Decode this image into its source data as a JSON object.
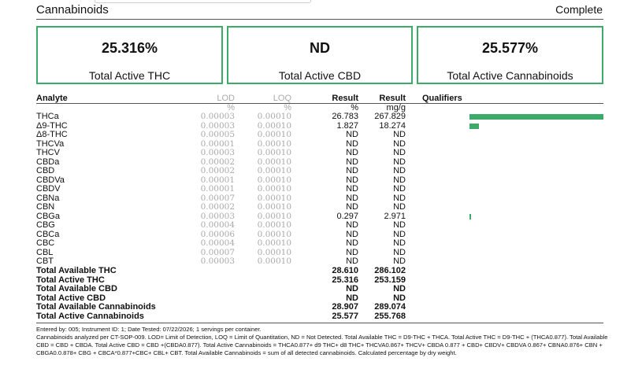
{
  "header": {
    "section_title": "Cannabinoids",
    "status": "Complete"
  },
  "summary": [
    {
      "value": "25.316%",
      "label": "Total Active THC"
    },
    {
      "value": "ND",
      "label": "Total Active CBD"
    },
    {
      "value": "25.577%",
      "label": "Total Active Cannabinoids"
    }
  ],
  "columns": {
    "analyte": "Analyte",
    "lod": "LOD",
    "lod_unit": "%",
    "loq": "LOQ",
    "loq_unit": "%",
    "result_pct": "Result",
    "result_pct_unit": "%",
    "result_mg": "Result",
    "result_mg_unit": "mg/g",
    "qualifiers": "Qualifiers"
  },
  "rows": [
    {
      "analyte": "THCa",
      "lod": "0.00003",
      "loq": "0.00010",
      "pct": "26.783",
      "mg": "267.829",
      "bar": 1.0
    },
    {
      "analyte": "Δ9-THC",
      "lod": "0.00003",
      "loq": "0.00010",
      "pct": "1.827",
      "mg": "18.274",
      "bar": 0.07
    },
    {
      "analyte": "Δ8-THC",
      "lod": "0.00005",
      "loq": "0.00010",
      "pct": "ND",
      "mg": "ND",
      "bar": 0
    },
    {
      "analyte": "THCVa",
      "lod": "0.00001",
      "loq": "0.00010",
      "pct": "ND",
      "mg": "ND",
      "bar": 0
    },
    {
      "analyte": "THCV",
      "lod": "0.00003",
      "loq": "0.00010",
      "pct": "ND",
      "mg": "ND",
      "bar": 0
    },
    {
      "analyte": "CBDa",
      "lod": "0.00002",
      "loq": "0.00010",
      "pct": "ND",
      "mg": "ND",
      "bar": 0
    },
    {
      "analyte": "CBD",
      "lod": "0.00002",
      "loq": "0.00010",
      "pct": "ND",
      "mg": "ND",
      "bar": 0
    },
    {
      "analyte": "CBDVa",
      "lod": "0.00001",
      "loq": "0.00010",
      "pct": "ND",
      "mg": "ND",
      "bar": 0
    },
    {
      "analyte": "CBDV",
      "lod": "0.00001",
      "loq": "0.00010",
      "pct": "ND",
      "mg": "ND",
      "bar": 0
    },
    {
      "analyte": "CBNa",
      "lod": "0.00007",
      "loq": "0.00010",
      "pct": "ND",
      "mg": "ND",
      "bar": 0
    },
    {
      "analyte": "CBN",
      "lod": "0.00002",
      "loq": "0.00010",
      "pct": "ND",
      "mg": "ND",
      "bar": 0
    },
    {
      "analyte": "CBGa",
      "lod": "0.00003",
      "loq": "0.00010",
      "pct": "0.297",
      "mg": "2.971",
      "bar": 0.011
    },
    {
      "analyte": "CBG",
      "lod": "0.00004",
      "loq": "0.00010",
      "pct": "ND",
      "mg": "ND",
      "bar": 0
    },
    {
      "analyte": "CBCa",
      "lod": "0.00006",
      "loq": "0.00010",
      "pct": "ND",
      "mg": "ND",
      "bar": 0
    },
    {
      "analyte": "CBC",
      "lod": "0.00004",
      "loq": "0.00010",
      "pct": "ND",
      "mg": "ND",
      "bar": 0
    },
    {
      "analyte": "CBL",
      "lod": "0.00007",
      "loq": "0.00010",
      "pct": "ND",
      "mg": "ND",
      "bar": 0
    },
    {
      "analyte": "CBT",
      "lod": "0.00003",
      "loq": "0.00010",
      "pct": "ND",
      "mg": "ND",
      "bar": 0
    }
  ],
  "totals": [
    {
      "label": "Total Available THC",
      "pct": "28.610",
      "mg": "286.102"
    },
    {
      "label": "Total Active THC",
      "pct": "25.316",
      "mg": "253.159"
    },
    {
      "label": "Total Available CBD",
      "pct": "ND",
      "mg": "ND"
    },
    {
      "label": "Total Active CBD",
      "pct": "ND",
      "mg": "ND"
    },
    {
      "label": "Total Available Cannabinoids",
      "pct": "28.907",
      "mg": "289.074"
    },
    {
      "label": "Total Active Cannabinoids",
      "pct": "25.577",
      "mg": "255.768"
    }
  ],
  "footer": {
    "line1": "Entered by: 005; Instrument ID: 1; Date Tested: 07/22/2026; 1 servings per container.",
    "line2": "Cannabinoids analyzed per CT-SOP-009. LOD= Limit of Detection, LOQ = Limit of Quantitation, ND = Not Detected. Total Available THC = D9-THC + THCA. Total Active THC = D9-THC + (THCA0.877). Total Available CBD = CBD + CBDA. Total Active CBD = CBD +(CBDA0.877). Total Active Cannabinoids = THCA0.877+ d9 THC+ d8 THC+ THCVA0.867+ THCV+ CBDA 0.877 + CBD+ CBDV+ CBDVA 0.867+ CBNA0.876+ CBN + CBGA0.0.878+ CBG + CBCA*0.877+CBC+ CBL+ CBT. Total Available Cannabinoids = sum of all detected cannabinoids. Calculated percentage by dry weight."
  },
  "colors": {
    "accent": "#3cab6a"
  }
}
